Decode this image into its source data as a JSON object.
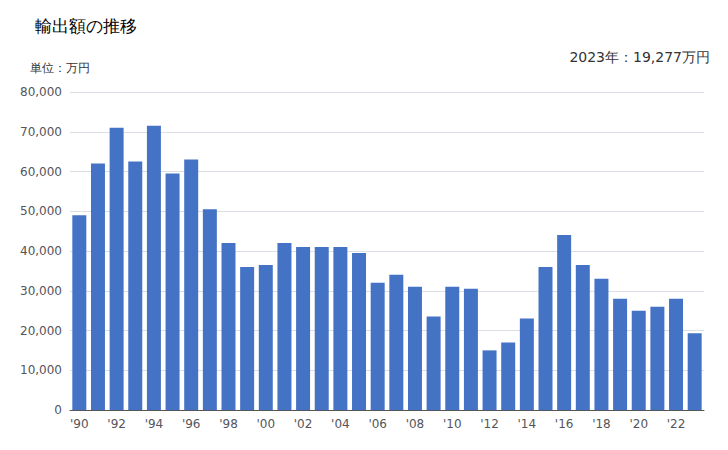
{
  "chart_data": {
    "type": "bar",
    "title": "輸出額の推移",
    "ylabel": "単位：万円",
    "annotation": "2023年：19,277万円",
    "categories": [
      "'90",
      null,
      "'92",
      null,
      "'94",
      null,
      "'96",
      null,
      "'98",
      null,
      "'00",
      null,
      "'02",
      null,
      "'04",
      null,
      "'06",
      null,
      "'08",
      null,
      "'10",
      null,
      "'12",
      null,
      "'14",
      null,
      "'16",
      null,
      "'18",
      null,
      "'20",
      null,
      "'22",
      null
    ],
    "values": [
      49000,
      62000,
      71000,
      62500,
      71500,
      59500,
      63000,
      50500,
      42000,
      36000,
      36500,
      42000,
      41000,
      41000,
      41000,
      39500,
      32000,
      34000,
      31000,
      23500,
      31000,
      30500,
      15000,
      17000,
      23000,
      36000,
      44000,
      36500,
      33000,
      28000,
      25000,
      26000,
      28000,
      19277
    ],
    "color": "#4472c4",
    "ylim": [
      0,
      80000
    ],
    "yticks": [
      0,
      {
        "value": 10000,
        "label": "10,000"
      },
      {
        "value": 20000,
        "label": "20,000"
      },
      {
        "value": 30000,
        "label": "30,000"
      },
      {
        "value": 40000,
        "label": "40,000"
      },
      {
        "value": 50000,
        "label": "50,000"
      },
      {
        "value": 60000,
        "label": "60,000"
      },
      {
        "value": 70000,
        "label": "70,000"
      },
      {
        "value": 80000,
        "label": "80,000"
      }
    ],
    "grid": true
  }
}
